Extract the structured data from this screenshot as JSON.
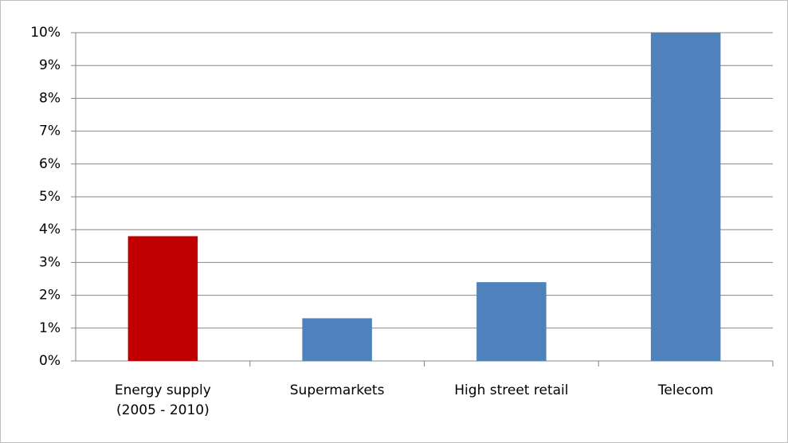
{
  "chart_data": {
    "type": "bar",
    "categories": [
      "Energy supply\n(2005 - 2010)",
      "Supermarkets",
      "High street retail",
      "Telecom"
    ],
    "values": [
      3.8,
      1.3,
      2.4,
      10
    ],
    "colors": [
      "#c00000",
      "#4f81bd",
      "#4f81bd",
      "#4f81bd"
    ],
    "ylim": [
      0,
      10
    ],
    "yticks": [
      {
        "value": 0,
        "label": "0%"
      },
      {
        "value": 1,
        "label": "1%"
      },
      {
        "value": 2,
        "label": "2%"
      },
      {
        "value": 3,
        "label": "3%"
      },
      {
        "value": 4,
        "label": "4%"
      },
      {
        "value": 5,
        "label": "5%"
      },
      {
        "value": 6,
        "label": "6%"
      },
      {
        "value": 7,
        "label": "7%"
      },
      {
        "value": 8,
        "label": "8%"
      },
      {
        "value": 9,
        "label": "9%"
      },
      {
        "value": 10,
        "label": "10%"
      }
    ],
    "grid": true
  }
}
